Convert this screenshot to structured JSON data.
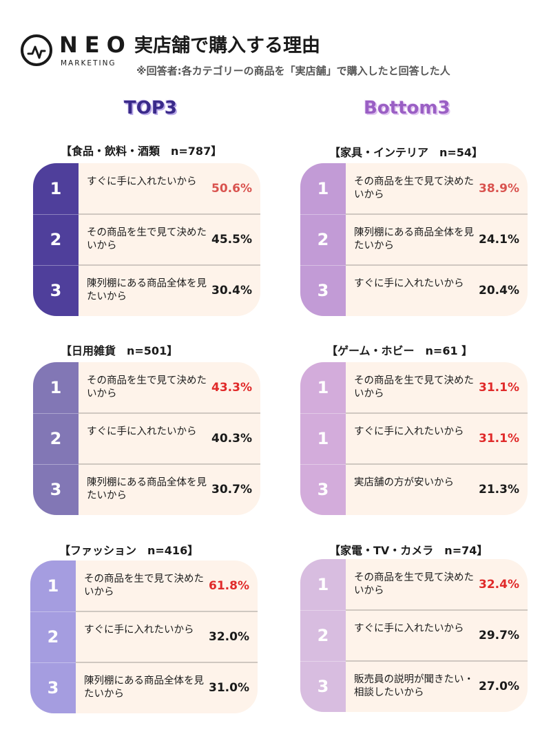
{
  "brand": {
    "name": "NEO",
    "sub": "MARKETING"
  },
  "title": "実店舗で購入する理由",
  "subtitle": "※回答者:各カテゴリーの商品を「実店舗」で購入したと回答した人",
  "sections": {
    "top": "TOP3",
    "bottom": "Bottom3"
  },
  "colors": {
    "top_card1": "#4f3f9b",
    "top_card2": "#8277b5",
    "top_card3": "#a59de0",
    "bottom_card1": "#c29bd6",
    "bottom_card2": "#d3acdb",
    "bottom_card3": "#d8bde0",
    "card_bg": "#fef3ea",
    "highlight": "#e02a2a"
  },
  "chart_data": [
    {
      "type": "table",
      "group": "TOP3",
      "title": "【食品・飲料・酒類　n=787】",
      "rows": [
        {
          "rank": "1",
          "reason": "すぐに手に入れたいから",
          "value": 50.6,
          "label": "50.6%"
        },
        {
          "rank": "2",
          "reason": "その商品を生で見て決めたいから",
          "value": 45.5,
          "label": "45.5%"
        },
        {
          "rank": "3",
          "reason": "陳列棚にある商品全体を見たいから",
          "value": 30.4,
          "label": "30.4%"
        }
      ]
    },
    {
      "type": "table",
      "group": "TOP3",
      "title": "【日用雑貨　n=501】",
      "rows": [
        {
          "rank": "1",
          "reason": "その商品を生で見て決めたいから",
          "value": 43.3,
          "label": "43.3%"
        },
        {
          "rank": "2",
          "reason": "すぐに手に入れたいから",
          "value": 40.3,
          "label": "40.3%"
        },
        {
          "rank": "3",
          "reason": "陳列棚にある商品全体を見たいから",
          "value": 30.7,
          "label": "30.7%"
        }
      ]
    },
    {
      "type": "table",
      "group": "TOP3",
      "title": "【ファッション　n=416】",
      "rows": [
        {
          "rank": "1",
          "reason": "その商品を生で見て決めたいから",
          "value": 61.8,
          "label": "61.8%"
        },
        {
          "rank": "2",
          "reason": "すぐに手に入れたいから",
          "value": 32.0,
          "label": "32.0%"
        },
        {
          "rank": "3",
          "reason": "陳列棚にある商品全体を見たいから",
          "value": 31.0,
          "label": "31.0%"
        }
      ]
    },
    {
      "type": "table",
      "group": "Bottom3",
      "title": "【家具・インテリア　n=54】",
      "rows": [
        {
          "rank": "1",
          "reason": "その商品を生で見て決めたいから",
          "value": 38.9,
          "label": "38.9%"
        },
        {
          "rank": "2",
          "reason": "陳列棚にある商品全体を見たいから",
          "value": 24.1,
          "label": "24.1%"
        },
        {
          "rank": "3",
          "reason": "すぐに手に入れたいから",
          "value": 20.4,
          "label": "20.4%"
        }
      ]
    },
    {
      "type": "table",
      "group": "Bottom3",
      "title": "【ゲーム・ホビー　n=61 】",
      "rows": [
        {
          "rank": "1",
          "reason": "その商品を生で見て決めたいから",
          "value": 31.1,
          "label": "31.1%"
        },
        {
          "rank": "1",
          "reason": "すぐに手に入れたいから",
          "value": 31.1,
          "label": "31.1%"
        },
        {
          "rank": "3",
          "reason": "実店舗の方が安いから",
          "value": 21.3,
          "label": "21.3%"
        }
      ]
    },
    {
      "type": "table",
      "group": "Bottom3",
      "title": "【家電・TV・カメラ　n=74】",
      "rows": [
        {
          "rank": "1",
          "reason": "その商品を生で見て決めたいから",
          "value": 32.4,
          "label": "32.4%"
        },
        {
          "rank": "2",
          "reason": "すぐに手に入れたいから",
          "value": 29.7,
          "label": "29.7%"
        },
        {
          "rank": "3",
          "reason": "販売員の説明が聞きたい・相談したいから",
          "value": 27.0,
          "label": "27.0%"
        }
      ]
    }
  ]
}
